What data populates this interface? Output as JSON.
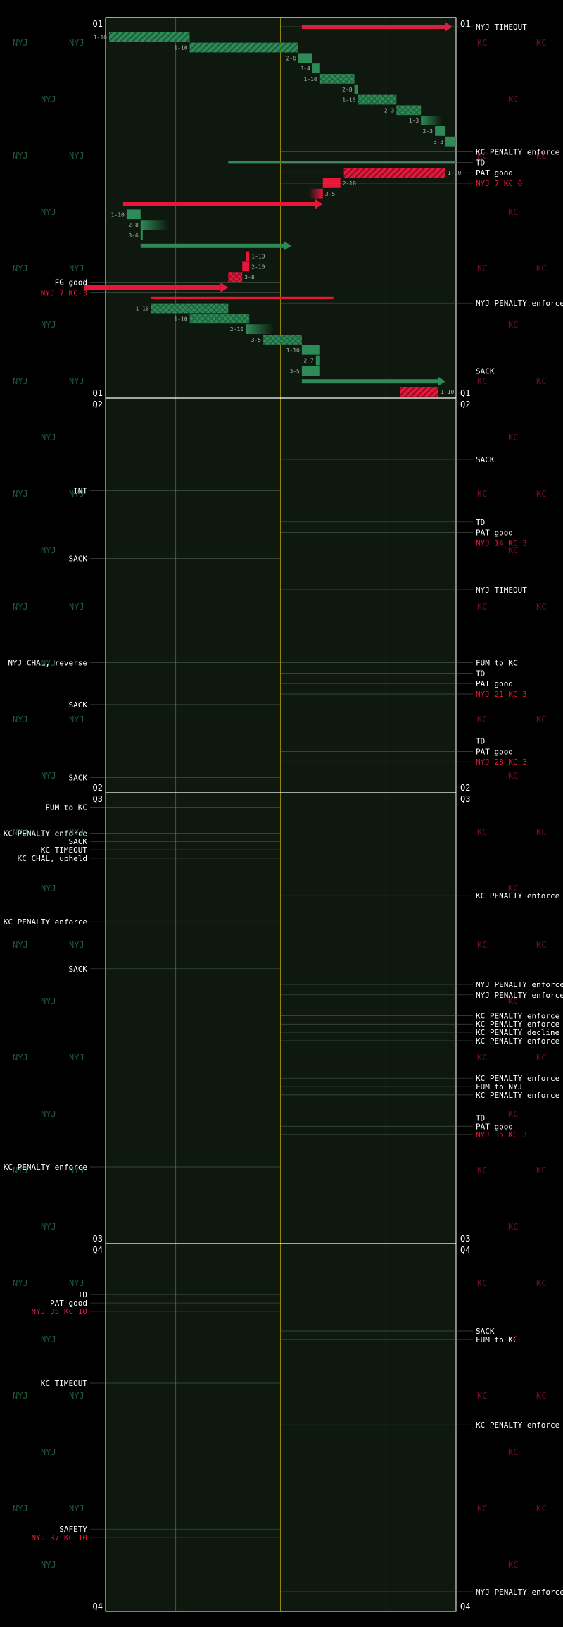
{
  "chart_data": {
    "type": "drive-chart",
    "colors": {
      "background": "#000000",
      "field": "#0e180e",
      "nyj": "#2e8b57",
      "nyj_light": "#55c98a",
      "kc": "#e8173a",
      "kc_dark": "#a0102a",
      "midfield": "#b6a000",
      "grid": "#4e5a10",
      "text": "#ffffff",
      "muted_nyj": "#1e5a3c",
      "muted_kc": "#6a1020"
    },
    "teams": {
      "left": "NYJ",
      "right": "KC"
    },
    "end_zone_labels": {
      "left": "NYJ",
      "right": "KC"
    },
    "quarters": [
      {
        "label_left": "Q1",
        "label_right": "Q1",
        "end_label_left": "Q1",
        "end_label_right": "Q1"
      },
      {
        "label_left": "Q2",
        "label_right": "Q2",
        "end_label_left": "Q2",
        "end_label_right": "Q2"
      },
      {
        "label_left": "Q3",
        "label_right": "Q3",
        "end_label_left": "Q3",
        "end_label_right": "Q3"
      },
      {
        "label_left": "Q4",
        "label_right": "Q4",
        "end_label_left": "Q4",
        "end_label_right": "Q4"
      }
    ],
    "plays": [
      {
        "q": 0,
        "team": "KC",
        "from": 56,
        "to": 99,
        "row": 0,
        "kind": "arrow"
      },
      {
        "q": 0,
        "team": "NYJ",
        "from": 1,
        "to": 24,
        "row": 1,
        "kind": "hatch",
        "label": "1-10"
      },
      {
        "q": 0,
        "team": "NYJ",
        "from": 24,
        "to": 55,
        "row": 2,
        "kind": "hatch",
        "label": "1-10"
      },
      {
        "q": 0,
        "team": "NYJ",
        "from": 55,
        "to": 59,
        "row": 3,
        "kind": "solid",
        "label": "2-6"
      },
      {
        "q": 0,
        "team": "NYJ",
        "from": 59,
        "to": 61,
        "row": 4,
        "kind": "solid",
        "label": "3-4"
      },
      {
        "q": 0,
        "team": "NYJ",
        "from": 61,
        "to": 71,
        "row": 5,
        "kind": "cross",
        "label": "1-10"
      },
      {
        "q": 0,
        "team": "NYJ",
        "from": 71,
        "to": 72,
        "row": 6,
        "kind": "solid",
        "label": "2-8"
      },
      {
        "q": 0,
        "team": "NYJ",
        "from": 72,
        "to": 83,
        "row": 7,
        "kind": "cross",
        "label": "1-10"
      },
      {
        "q": 0,
        "team": "NYJ",
        "from": 83,
        "to": 90,
        "row": 8,
        "kind": "cross",
        "label": "2-3"
      },
      {
        "q": 0,
        "team": "NYJ",
        "from": 90,
        "to": 96,
        "row": 9,
        "kind": "fade",
        "label": "1-3"
      },
      {
        "q": 0,
        "team": "NYJ",
        "from": 94,
        "to": 97,
        "row": 10,
        "kind": "solid",
        "label": "2-3"
      },
      {
        "q": 0,
        "team": "NYJ",
        "from": 97,
        "to": 100,
        "row": 11,
        "kind": "solid",
        "label": "3-3"
      },
      {
        "q": 0,
        "team": "NYJ",
        "from": 35,
        "to": 100,
        "row": 13,
        "kind": "thin"
      },
      {
        "q": 0,
        "team": "KC",
        "from": 68,
        "to": 97,
        "row": 14,
        "kind": "hatch",
        "label": "1-10"
      },
      {
        "q": 0,
        "team": "KC",
        "from": 62,
        "to": 67,
        "row": 15,
        "kind": "solid",
        "label": "2-10"
      },
      {
        "q": 0,
        "team": "KC",
        "from": 58,
        "to": 62,
        "row": 16,
        "kind": "fade",
        "label": "3-5"
      },
      {
        "q": 0,
        "team": "KC",
        "from": 5,
        "to": 62,
        "row": 17,
        "kind": "arrow"
      },
      {
        "q": 0,
        "team": "NYJ",
        "from": 6,
        "to": 10,
        "row": 18,
        "kind": "solid",
        "label": "1-10"
      },
      {
        "q": 0,
        "team": "NYJ",
        "from": 10,
        "to": 18,
        "row": 19,
        "kind": "fade",
        "label": "2-8"
      },
      {
        "q": 0,
        "team": "NYJ",
        "from": 10,
        "to": 10,
        "row": 20,
        "kind": "solid",
        "label": "3-6"
      },
      {
        "q": 0,
        "team": "NYJ",
        "from": 10,
        "to": 53,
        "row": 21,
        "kind": "arrow"
      },
      {
        "q": 0,
        "team": "KC",
        "from": 40,
        "to": 41,
        "row": 22,
        "kind": "solid",
        "label": "1-10"
      },
      {
        "q": 0,
        "team": "KC",
        "from": 39,
        "to": 41,
        "row": 23,
        "kind": "solid",
        "label": "2-10"
      },
      {
        "q": 0,
        "team": "KC",
        "from": 35,
        "to": 39,
        "row": 24,
        "kind": "cross",
        "label": "3-8"
      },
      {
        "q": 0,
        "team": "KC",
        "from": -6,
        "to": 35,
        "row": 25,
        "kind": "arrow"
      },
      {
        "q": 0,
        "team": "KC",
        "from": 13,
        "to": 65,
        "row": 26,
        "kind": "thin"
      },
      {
        "q": 0,
        "team": "NYJ",
        "from": 13,
        "to": 35,
        "row": 27,
        "kind": "cross",
        "label": "1-10"
      },
      {
        "q": 0,
        "team": "NYJ",
        "from": 24,
        "to": 41,
        "row": 28,
        "kind": "cross",
        "label": "1-10"
      },
      {
        "q": 0,
        "team": "NYJ",
        "from": 40,
        "to": 48,
        "row": 29,
        "kind": "fade",
        "label": "2-10"
      },
      {
        "q": 0,
        "team": "NYJ",
        "from": 45,
        "to": 56,
        "row": 30,
        "kind": "cross",
        "label": "3-5"
      },
      {
        "q": 0,
        "team": "NYJ",
        "from": 56,
        "to": 61,
        "row": 31,
        "kind": "solid",
        "label": "1-10"
      },
      {
        "q": 0,
        "team": "NYJ",
        "from": 60,
        "to": 61,
        "row": 32,
        "kind": "solid",
        "label": "2-7"
      },
      {
        "q": 0,
        "team": "NYJ",
        "from": 56,
        "to": 61,
        "row": 33,
        "kind": "solid",
        "label": "3-5"
      },
      {
        "q": 0,
        "team": "NYJ",
        "from": 56,
        "to": 97,
        "row": 34,
        "kind": "arrow"
      },
      {
        "q": 0,
        "team": "KC",
        "from": 84,
        "to": 95,
        "row": 35,
        "kind": "hatch",
        "label": "1-10"
      }
    ],
    "annotations": [
      {
        "side": "right",
        "q": 0,
        "row": 0,
        "text": "NYJ TIMEOUT",
        "color": "text"
      },
      {
        "side": "right",
        "q": 0,
        "row": 12,
        "text": "KC PENALTY enforce",
        "color": "text"
      },
      {
        "side": "right",
        "q": 0,
        "row": 13,
        "text": "TD",
        "color": "text"
      },
      {
        "side": "right",
        "q": 0,
        "row": 14,
        "text": "PAT good",
        "color": "text"
      },
      {
        "side": "right",
        "q": 0,
        "row": 15,
        "text": "NYJ 7 KC 0",
        "color": "kc"
      },
      {
        "side": "left",
        "q": 0,
        "row": 24.5,
        "text": "FG good",
        "color": "text"
      },
      {
        "side": "left",
        "q": 0,
        "row": 25.5,
        "text": "NYJ 7 KC 3",
        "color": "kc"
      },
      {
        "side": "right",
        "q": 0,
        "row": 26.5,
        "text": "NYJ PENALTY enforce",
        "color": "text"
      },
      {
        "side": "right",
        "q": 0,
        "row": 33,
        "text": "SACK",
        "color": "text"
      },
      {
        "side": "right",
        "q": 1,
        "row": 5,
        "text": "SACK",
        "color": "text"
      },
      {
        "side": "left",
        "q": 1,
        "row": 8,
        "text": "INT",
        "color": "text"
      },
      {
        "side": "right",
        "q": 1,
        "row": 11,
        "text": "TD",
        "color": "text"
      },
      {
        "side": "right",
        "q": 1,
        "row": 12,
        "text": "PAT good",
        "color": "text"
      },
      {
        "side": "right",
        "q": 1,
        "row": 13,
        "text": "NYJ 14 KC 3",
        "color": "kc"
      },
      {
        "side": "left",
        "q": 1,
        "row": 14.5,
        "text": "SACK",
        "color": "text"
      },
      {
        "side": "right",
        "q": 1,
        "row": 17.5,
        "text": "NYJ TIMEOUT",
        "color": "text"
      },
      {
        "side": "left",
        "q": 1,
        "row": 24.5,
        "text": "NYJ CHAL, reverse",
        "color": "text"
      },
      {
        "side": "right",
        "q": 1,
        "row": 24.5,
        "text": "FUM to KC",
        "color": "text"
      },
      {
        "side": "right",
        "q": 1,
        "row": 25.5,
        "text": "TD",
        "color": "text"
      },
      {
        "side": "right",
        "q": 1,
        "row": 26.5,
        "text": "PAT good",
        "color": "text"
      },
      {
        "side": "right",
        "q": 1,
        "row": 27.5,
        "text": "NYJ 21 KC 3",
        "color": "kc"
      },
      {
        "side": "left",
        "q": 1,
        "row": 28.5,
        "text": "SACK",
        "color": "text"
      },
      {
        "side": "right",
        "q": 1,
        "row": 32,
        "text": "TD",
        "color": "text"
      },
      {
        "side": "right",
        "q": 1,
        "row": 33,
        "text": "PAT good",
        "color": "text"
      },
      {
        "side": "right",
        "q": 1,
        "row": 34,
        "text": "NYJ 28 KC 3",
        "color": "kc"
      },
      {
        "side": "left",
        "q": 1,
        "row": 35.5,
        "text": "SACK",
        "color": "text"
      },
      {
        "side": "left",
        "q": 2,
        "row": 0.5,
        "text": "FUM to KC",
        "color": "text"
      },
      {
        "side": "left",
        "q": 2,
        "row": 3,
        "text": "KC PENALTY enforce",
        "color": "text"
      },
      {
        "side": "left",
        "q": 2,
        "row": 3.8,
        "text": "SACK",
        "color": "text"
      },
      {
        "side": "left",
        "q": 2,
        "row": 4.6,
        "text": "KC TIMEOUT",
        "color": "text"
      },
      {
        "side": "left",
        "q": 2,
        "row": 5.4,
        "text": "KC CHAL, upheld",
        "color": "text"
      },
      {
        "side": "right",
        "q": 2,
        "row": 9,
        "text": "KC PENALTY enforce",
        "color": "text"
      },
      {
        "side": "left",
        "q": 2,
        "row": 11.5,
        "text": "KC PENALTY enforce",
        "color": "text"
      },
      {
        "side": "left",
        "q": 2,
        "row": 16,
        "text": "SACK",
        "color": "text"
      },
      {
        "side": "right",
        "q": 2,
        "row": 17.5,
        "text": "NYJ PENALTY enforce",
        "color": "text"
      },
      {
        "side": "right",
        "q": 2,
        "row": 18.5,
        "text": "NYJ PENALTY enforce",
        "color": "text"
      },
      {
        "side": "right",
        "q": 2,
        "row": 20.5,
        "text": "KC PENALTY enforce",
        "color": "text"
      },
      {
        "side": "right",
        "q": 2,
        "row": 21.3,
        "text": "KC PENALTY enforce",
        "color": "text"
      },
      {
        "side": "right",
        "q": 2,
        "row": 22.1,
        "text": "KC PENALTY decline",
        "color": "text"
      },
      {
        "side": "right",
        "q": 2,
        "row": 22.9,
        "text": "KC PENALTY enforce",
        "color": "text"
      },
      {
        "side": "right",
        "q": 2,
        "row": 26.5,
        "text": "KC PENALTY enforce",
        "color": "text"
      },
      {
        "side": "right",
        "q": 2,
        "row": 27.3,
        "text": "FUM to NYJ",
        "color": "text"
      },
      {
        "side": "right",
        "q": 2,
        "row": 28.1,
        "text": "KC PENALTY enforce",
        "color": "text"
      },
      {
        "side": "right",
        "q": 2,
        "row": 30.3,
        "text": "TD",
        "color": "text"
      },
      {
        "side": "right",
        "q": 2,
        "row": 31.1,
        "text": "PAT good",
        "color": "text"
      },
      {
        "side": "right",
        "q": 2,
        "row": 31.9,
        "text": "NYJ 35 KC 3",
        "color": "kc"
      },
      {
        "side": "left",
        "q": 2,
        "row": 35,
        "text": "KC PENALTY enforce",
        "color": "text"
      },
      {
        "side": "left",
        "q": 3,
        "row": 4,
        "text": "TD",
        "color": "text"
      },
      {
        "side": "left",
        "q": 3,
        "row": 4.8,
        "text": "PAT good",
        "color": "text"
      },
      {
        "side": "left",
        "q": 3,
        "row": 5.6,
        "text": "NYJ 35 KC 10",
        "color": "kc"
      },
      {
        "side": "right",
        "q": 3,
        "row": 7.5,
        "text": "SACK",
        "color": "text"
      },
      {
        "side": "right",
        "q": 3,
        "row": 8.3,
        "text": "FUM to KC",
        "color": "text"
      },
      {
        "side": "left",
        "q": 3,
        "row": 12.5,
        "text": "KC TIMEOUT",
        "color": "text"
      },
      {
        "side": "right",
        "q": 3,
        "row": 16.5,
        "text": "KC PENALTY enforce",
        "color": "text"
      },
      {
        "side": "left",
        "q": 3,
        "row": 26.5,
        "text": "SAFETY",
        "color": "text"
      },
      {
        "side": "left",
        "q": 3,
        "row": 27.3,
        "text": "NYJ 37 KC 10",
        "color": "kc"
      },
      {
        "side": "right",
        "q": 3,
        "row": 32.5,
        "text": "NYJ PENALTY enforce",
        "color": "text"
      }
    ]
  }
}
